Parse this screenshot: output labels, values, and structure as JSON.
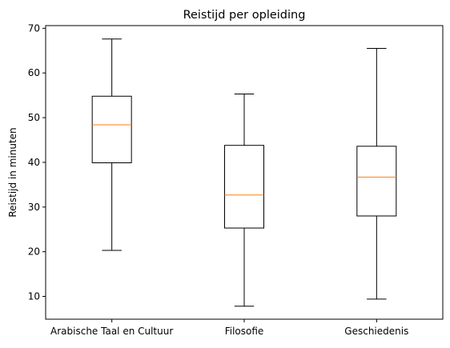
{
  "chart_data": {
    "type": "boxplot",
    "title": "Reistijd per opleiding",
    "xlabel": "",
    "ylabel": "Reistijd in minuten",
    "categories": [
      "Arabische Taal en Cultuur",
      "Filosofie",
      "Geschiedenis"
    ],
    "boxes": [
      {
        "whisker_low": 20.3,
        "q1": 39.9,
        "median": 48.4,
        "q3": 54.8,
        "whisker_high": 67.6
      },
      {
        "whisker_low": 7.8,
        "q1": 25.3,
        "median": 32.7,
        "q3": 43.8,
        "whisker_high": 55.3
      },
      {
        "whisker_low": 9.4,
        "q1": 28.0,
        "median": 36.7,
        "q3": 43.6,
        "whisker_high": 65.5
      }
    ],
    "ylim": [
      4.9,
      70.6
    ],
    "yticks": [
      10,
      20,
      30,
      40,
      50,
      60,
      70
    ],
    "grid": false,
    "colors": {
      "box": "#000000",
      "median": "#ff7f0e",
      "axes": "#000000"
    }
  }
}
